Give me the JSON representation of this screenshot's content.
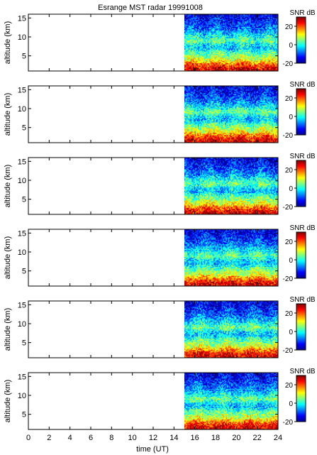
{
  "chart_data": {
    "type": "heatmap",
    "title": "Esrange MST radar 19991008",
    "xlabel": "time (UT)",
    "ylabel": "altitude (km)",
    "xlim": [
      0,
      24
    ],
    "ylim": [
      1,
      16
    ],
    "x_ticks": [
      0,
      2,
      4,
      6,
      8,
      10,
      12,
      14,
      16,
      18,
      20,
      22,
      24
    ],
    "y_ticks": [
      5,
      10,
      15
    ],
    "data_time_range": [
      15,
      24
    ],
    "colorbar": {
      "label": "SNR dB",
      "range": [
        -20,
        30
      ],
      "ticks": [
        -20,
        0,
        20
      ],
      "colormap": "jet",
      "colors": [
        "#00008f",
        "#0000ff",
        "#007fff",
        "#00ffff",
        "#7fff7f",
        "#ffff00",
        "#ff7f00",
        "#ff0000",
        "#7f0000"
      ]
    },
    "panels": [
      {
        "id": 1
      },
      {
        "id": 2
      },
      {
        "id": 3
      },
      {
        "id": 4
      },
      {
        "id": 5
      },
      {
        "id": 6
      }
    ],
    "snr_profile": {
      "altitude_km": [
        1,
        2,
        3,
        4,
        5,
        6,
        7,
        8,
        9,
        10,
        11,
        12,
        13,
        14,
        15,
        16
      ],
      "snr_db": [
        26,
        24,
        18,
        10,
        6,
        2,
        -4,
        -2,
        4,
        0,
        -4,
        -8,
        -10,
        -12,
        -14,
        -15
      ]
    }
  }
}
